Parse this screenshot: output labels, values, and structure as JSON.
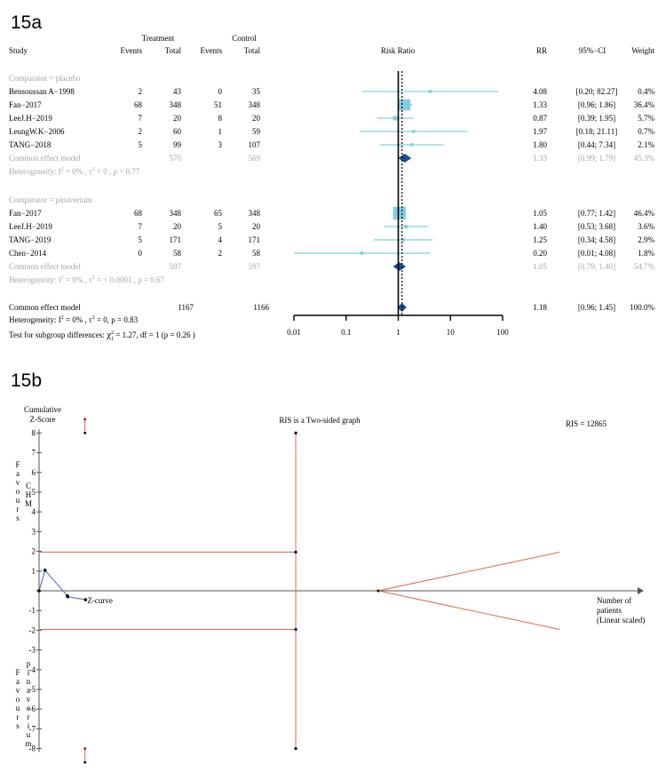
{
  "panel_a_label": "15a",
  "panel_b_label": "15b",
  "chart_data": [
    {
      "type": "forest",
      "header": {
        "treatment": "Treatment",
        "control": "Control",
        "study": "Study",
        "events_t": "Events",
        "total_t": "Total",
        "events_c": "Events",
        "total_c": "Total",
        "axis_title": "Risk Ratio",
        "rr": "RR",
        "ci": "95%−CI",
        "weight": "Weight"
      },
      "xlim": [
        0.01,
        100
      ],
      "ticks": [
        "0.01",
        "0.1",
        "1",
        "10",
        "100"
      ],
      "tick_values": [
        0.01,
        0.1,
        1,
        10,
        100
      ],
      "overall_line": 1.18,
      "subgroups": [
        {
          "label": "Comparator = placebo",
          "studies": [
            {
              "study": "Bensoussan A−1998",
              "et": "2",
              "nt": "43",
              "ec": "0",
              "nc": "35",
              "rr": 4.08,
              "lo": 0.2,
              "hi": 82.27,
              "rr_text": "4.08",
              "ci_text": "[0.20; 82.27]",
              "weight": 0.4,
              "weight_text": "0.4%"
            },
            {
              "study": "Fan−2017",
              "et": "68",
              "nt": "348",
              "ec": "51",
              "nc": "348",
              "rr": 1.33,
              "lo": 0.96,
              "hi": 1.86,
              "rr_text": "1.33",
              "ci_text": "[0.96; 1.86]",
              "weight": 36.4,
              "weight_text": "36.4%"
            },
            {
              "study": "LeeJ.H−2019",
              "et": "7",
              "nt": "20",
              "ec": "8",
              "nc": "20",
              "rr": 0.87,
              "lo": 0.39,
              "hi": 1.95,
              "rr_text": "0.87",
              "ci_text": "[0.39; 1.95]",
              "weight": 5.7,
              "weight_text": "5.7%"
            },
            {
              "study": "LeungW.K−2006",
              "et": "2",
              "nt": "60",
              "ec": "1",
              "nc": "59",
              "rr": 1.97,
              "lo": 0.18,
              "hi": 21.11,
              "rr_text": "1.97",
              "ci_text": "[0.18; 21.11]",
              "weight": 0.7,
              "weight_text": "0.7%"
            },
            {
              "study": "TANG−2018",
              "et": "5",
              "nt": "99",
              "ec": "3",
              "nc": "107",
              "rr": 1.8,
              "lo": 0.44,
              "hi": 7.34,
              "rr_text": "1.80",
              "ci_text": "[0.44; 7.34]",
              "weight": 2.1,
              "weight_text": "2.1%"
            }
          ],
          "pooled": {
            "label": "Common effect model",
            "nt": "570",
            "nc": "569",
            "rr": 1.33,
            "lo": 0.99,
            "hi": 1.79,
            "rr_text": "1.33",
            "ci_text": "[0.99; 1.79]",
            "weight_text": "45.3%"
          },
          "heterogeneity": {
            "prefix": "Heterogeneity:  I",
            "i2": "= 0% ,  τ",
            "t2": "= 0 ,  p = 0.77"
          }
        },
        {
          "label": "Comparator = pinaverium",
          "studies": [
            {
              "study": "Fan−2017",
              "et": "68",
              "nt": "348",
              "ec": "65",
              "nc": "348",
              "rr": 1.05,
              "lo": 0.77,
              "hi": 1.42,
              "rr_text": "1.05",
              "ci_text": "[0.77; 1.42]",
              "weight": 46.4,
              "weight_text": "46.4%"
            },
            {
              "study": "LeeJ.H−2019",
              "et": "7",
              "nt": "20",
              "ec": "5",
              "nc": "20",
              "rr": 1.4,
              "lo": 0.53,
              "hi": 3.68,
              "rr_text": "1.40",
              "ci_text": "[0.53; 3.68]",
              "weight": 3.6,
              "weight_text": "3.6%"
            },
            {
              "study": "TANG−2019",
              "et": "5",
              "nt": "171",
              "ec": "4",
              "nc": "171",
              "rr": 1.25,
              "lo": 0.34,
              "hi": 4.58,
              "rr_text": "1.25",
              "ci_text": "[0.34; 4.58]",
              "weight": 2.9,
              "weight_text": "2.9%"
            },
            {
              "study": "Chen−2014",
              "et": "0",
              "nt": "58",
              "ec": "2",
              "nc": "58",
              "rr": 0.2,
              "lo": 0.01,
              "hi": 4.08,
              "rr_text": "0.20",
              "ci_text": "[0.01; 4.08]",
              "weight": 1.8,
              "weight_text": "1.8%"
            }
          ],
          "pooled": {
            "label": "Common effect model",
            "nt": "597",
            "nc": "597",
            "rr": 1.05,
            "lo": 0.79,
            "hi": 1.4,
            "rr_text": "1.05",
            "ci_text": "[0.79; 1.40]",
            "weight_text": "54.7%"
          },
          "heterogeneity": {
            "prefix": "Heterogeneity:  I",
            "i2": "= 0% ,  τ",
            "t2": "= < 0.0001  ,  p = 0.67"
          }
        }
      ],
      "overall": {
        "label": "Common effect model",
        "nt": "1167",
        "nc": "1166",
        "rr": 1.18,
        "lo": 0.96,
        "hi": 1.45,
        "rr_text": "1.18",
        "ci_text": "[0.96; 1.45]",
        "weight_text": "100.0%"
      },
      "overall_heterogeneity": {
        "prefix": "Heterogeneity:  I",
        "i2": "= 0% ,  τ",
        "t2": "= 0,  p = 0.83"
      },
      "subgroup_test": {
        "prefix": "Test for subgroup differences:",
        "chi": "χ",
        "rest": "= 1.27, df = 1   (p = 0.26 )"
      },
      "colors": {
        "study": "#87cde0",
        "diamond": "#1f4e8c",
        "grey": "#a6a6a6"
      }
    },
    {
      "type": "line",
      "title": "RIS is a Two-sided graph",
      "ylabel": "Cumulative Z-Score",
      "ylabel_line1": "Cumulative",
      "ylabel_line2": "Z-Score",
      "yticks": [
        8,
        7,
        6,
        5,
        4,
        3,
        2,
        1,
        0,
        -1,
        -2,
        -3,
        -4,
        -5,
        -6,
        -7,
        -8
      ],
      "ytick_labels": [
        "8",
        "7",
        "6",
        "5",
        "4",
        "3",
        "2",
        "1",
        "",
        "-1",
        "-2",
        "-3",
        "-4",
        "-5",
        "-6",
        "-7",
        "-8"
      ],
      "ylim": [
        -8,
        8
      ],
      "xlabel": [
        "Number of",
        "patients",
        "(Linear scaled)"
      ],
      "ris_label": "RIS = 12865",
      "ris": 12865,
      "favours_top": {
        "v1": "Favours",
        "v2": "CHM"
      },
      "favours_bottom": {
        "v1": "Favours",
        "v2": "pinaverium"
      },
      "conventional_boundaries": [
        1.96,
        -1.96
      ],
      "z_curve": {
        "label": "Z-curve",
        "x": [
          0,
          300,
          1420,
          1440,
          2330
        ],
        "y": [
          0,
          1.04,
          -0.26,
          -0.3,
          -0.45
        ]
      },
      "monitoring_boundary": {
        "x": [
          17000,
          26100
        ],
        "upper": [
          0,
          1.96
        ],
        "lower": [
          0,
          -1.96
        ]
      },
      "futility_marks": {
        "x": 2300,
        "y_top": [
          8,
          8.7
        ],
        "y_bottom": [
          -8,
          -8.7
        ]
      },
      "colors": {
        "boundary": "#e06a4f",
        "zcurve": "#5b7fbf",
        "axis": "#555555"
      }
    }
  ]
}
